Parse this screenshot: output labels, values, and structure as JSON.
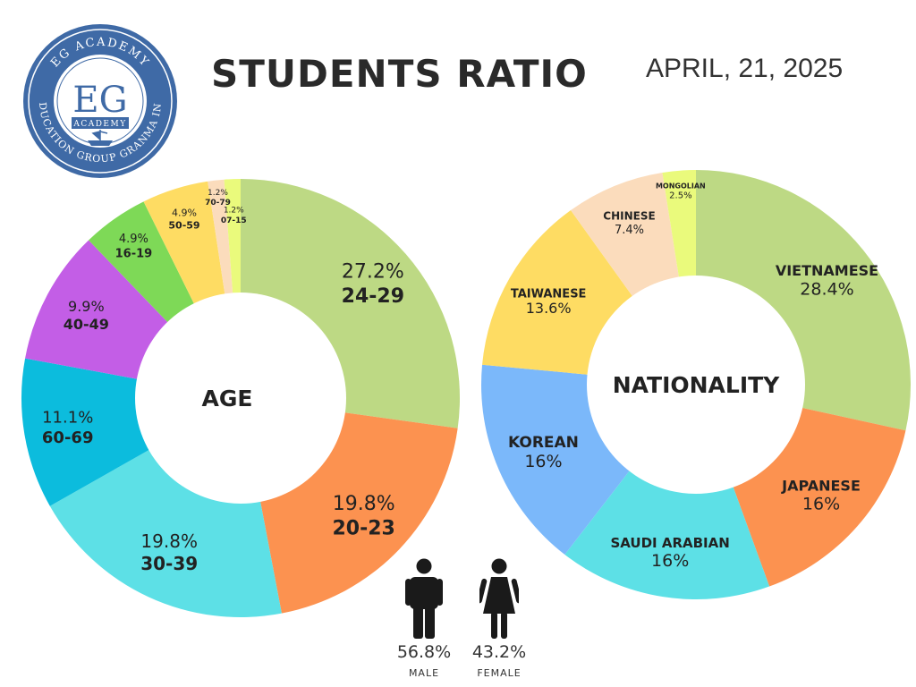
{
  "header": {
    "title": "STUDENTS RATIO",
    "date": "APRIL, 21, 2025"
  },
  "logo": {
    "ring_text_top": "EG ACADEMY",
    "ring_text_bottom": "EDUCATION GROUP GRANMA INC",
    "monogram": "EG",
    "sub": "ACADEMY",
    "color": "#3f6aa6"
  },
  "gender": {
    "male": {
      "percent": "56.8%",
      "label": "MALE"
    },
    "female": {
      "percent": "43.2%",
      "label": "FEMALE"
    }
  },
  "chart_data": [
    {
      "type": "pie",
      "title": "AGE",
      "donut": true,
      "slices": [
        {
          "label": "24-29",
          "value": 27.2,
          "value_label": "27.2%",
          "color": "#bdd984"
        },
        {
          "label": "20-23",
          "value": 19.8,
          "value_label": "19.8%",
          "color": "#fc9250"
        },
        {
          "label": "30-39",
          "value": 19.8,
          "value_label": "19.8%",
          "color": "#5de0e6"
        },
        {
          "label": "60-69",
          "value": 11.1,
          "value_label": "11.1%",
          "color": "#0cbcdd"
        },
        {
          "label": "40-49",
          "value": 9.9,
          "value_label": "9.9%",
          "color": "#c35ee6"
        },
        {
          "label": "16-19",
          "value": 4.9,
          "value_label": "4.9%",
          "color": "#7ed957"
        },
        {
          "label": "50-59",
          "value": 4.9,
          "value_label": "4.9%",
          "color": "#fedc63"
        },
        {
          "label": "70-79",
          "value": 1.2,
          "value_label": "1.2%",
          "color": "#fbdcbc"
        },
        {
          "label": "07-15",
          "value": 1.2,
          "value_label": "1.2%",
          "color": "#eafa7c"
        }
      ]
    },
    {
      "type": "pie",
      "title": "NATIONALITY",
      "donut": true,
      "slices": [
        {
          "label": "VIETNAMESE",
          "value": 28.4,
          "value_label": "28.4%",
          "color": "#bdd984"
        },
        {
          "label": "JAPANESE",
          "value": 16,
          "value_label": "16%",
          "color": "#fc9250"
        },
        {
          "label": "SAUDI ARABIAN",
          "value": 16,
          "value_label": "16%",
          "color": "#5de0e6"
        },
        {
          "label": "KOREAN",
          "value": 16,
          "value_label": "16%",
          "color": "#7bb8fa"
        },
        {
          "label": "TAIWANESE",
          "value": 13.6,
          "value_label": "13.6%",
          "color": "#fedc63"
        },
        {
          "label": "CHINESE",
          "value": 7.4,
          "value_label": "7.4%",
          "color": "#fbdcbc"
        },
        {
          "label": "MONGOLIAN",
          "value": 2.5,
          "value_label": "2.5%",
          "color": "#eafa7c"
        }
      ]
    }
  ]
}
